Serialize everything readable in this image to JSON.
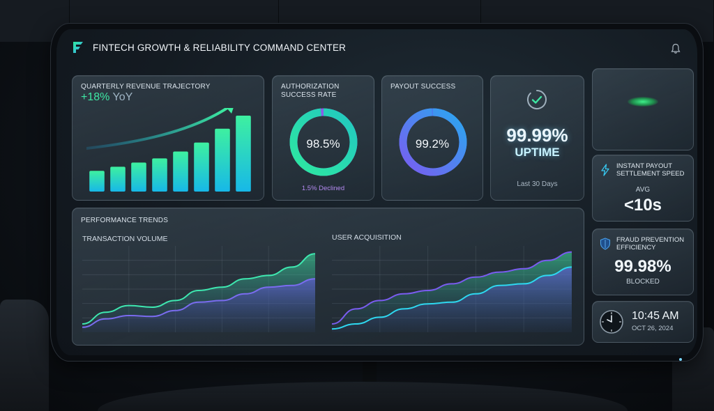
{
  "header": {
    "title": "FINTECH GROWTH & RELIABILITY COMMAND CENTER",
    "logo_icon": "fintech-logo-icon",
    "notification_icon": "bell-icon"
  },
  "revenue": {
    "title": "QUARTERLY REVENUE TRAJECTORY",
    "yoy_value": "+18%",
    "yoy_label": "YoY",
    "chart_data": {
      "type": "bar",
      "values": [
        3,
        3.6,
        4.2,
        4.8,
        5.8,
        7.1,
        9.1,
        11
      ],
      "trend_arrow": "up"
    }
  },
  "authorization": {
    "title": "AUTHORIZATION SUCCESS RATE",
    "value": "98.5%",
    "fraction": 0.985,
    "sub": "1.5% Declined"
  },
  "payout": {
    "title": "PAYOUT SUCCESS",
    "value": "99.2%",
    "fraction": 0.992
  },
  "uptime": {
    "value": "99.99%",
    "label": "UPTIME",
    "period": "Last 30 Days",
    "icon": "check-circle-icon"
  },
  "settlement": {
    "title": "INSTANT PAYOUT SETTLEMENT SPEED",
    "sub": "AVG",
    "value": "<10s",
    "icon": "lightning-icon"
  },
  "fraud": {
    "title": "FRAUD PREVENTION EFFICIENCY",
    "value": "99.98%",
    "sub": "BLOCKED",
    "icon": "shield-icon"
  },
  "clock": {
    "time": "10:45 AM",
    "date": "OCT 26, 2024",
    "icon": "clock-icon"
  },
  "trends": {
    "title": "PERFORMANCE TRENDS",
    "transaction_volume_label": "TRANSACTION VOLUME",
    "user_acquisition_label": "USER ACQUISITION"
  },
  "chart_data": [
    {
      "type": "area",
      "title": "TRANSACTION VOLUME",
      "x": [
        0,
        1,
        2,
        3,
        4,
        5,
        6,
        7,
        8,
        9,
        10
      ],
      "series": [
        {
          "values": [
            1,
            2.4,
            3.2,
            3.0,
            3.8,
            5.0,
            5.4,
            6.4,
            6.8,
            7.8,
            9.4
          ]
        },
        {
          "values": [
            0.6,
            1.6,
            2.0,
            1.9,
            2.6,
            3.6,
            3.8,
            4.6,
            5.4,
            5.6,
            6.4
          ]
        }
      ],
      "grid": true
    },
    {
      "type": "area",
      "title": "USER ACQUISITION",
      "x": [
        0,
        1,
        2,
        3,
        4,
        5,
        6,
        7,
        8,
        9,
        10
      ],
      "series": [
        {
          "values": [
            1,
            2.8,
            3.8,
            4.6,
            5.0,
            5.8,
            6.6,
            7.2,
            7.6,
            8.6,
            9.6
          ]
        },
        {
          "values": [
            0.4,
            1.0,
            1.8,
            2.8,
            3.4,
            3.6,
            4.6,
            5.6,
            5.8,
            6.8,
            7.8
          ]
        }
      ],
      "grid": true
    }
  ],
  "colors": {
    "green": "#3ee8a4",
    "cyan": "#2ed8f0",
    "purple": "#7a5cf0",
    "declined": "#b489f0"
  }
}
